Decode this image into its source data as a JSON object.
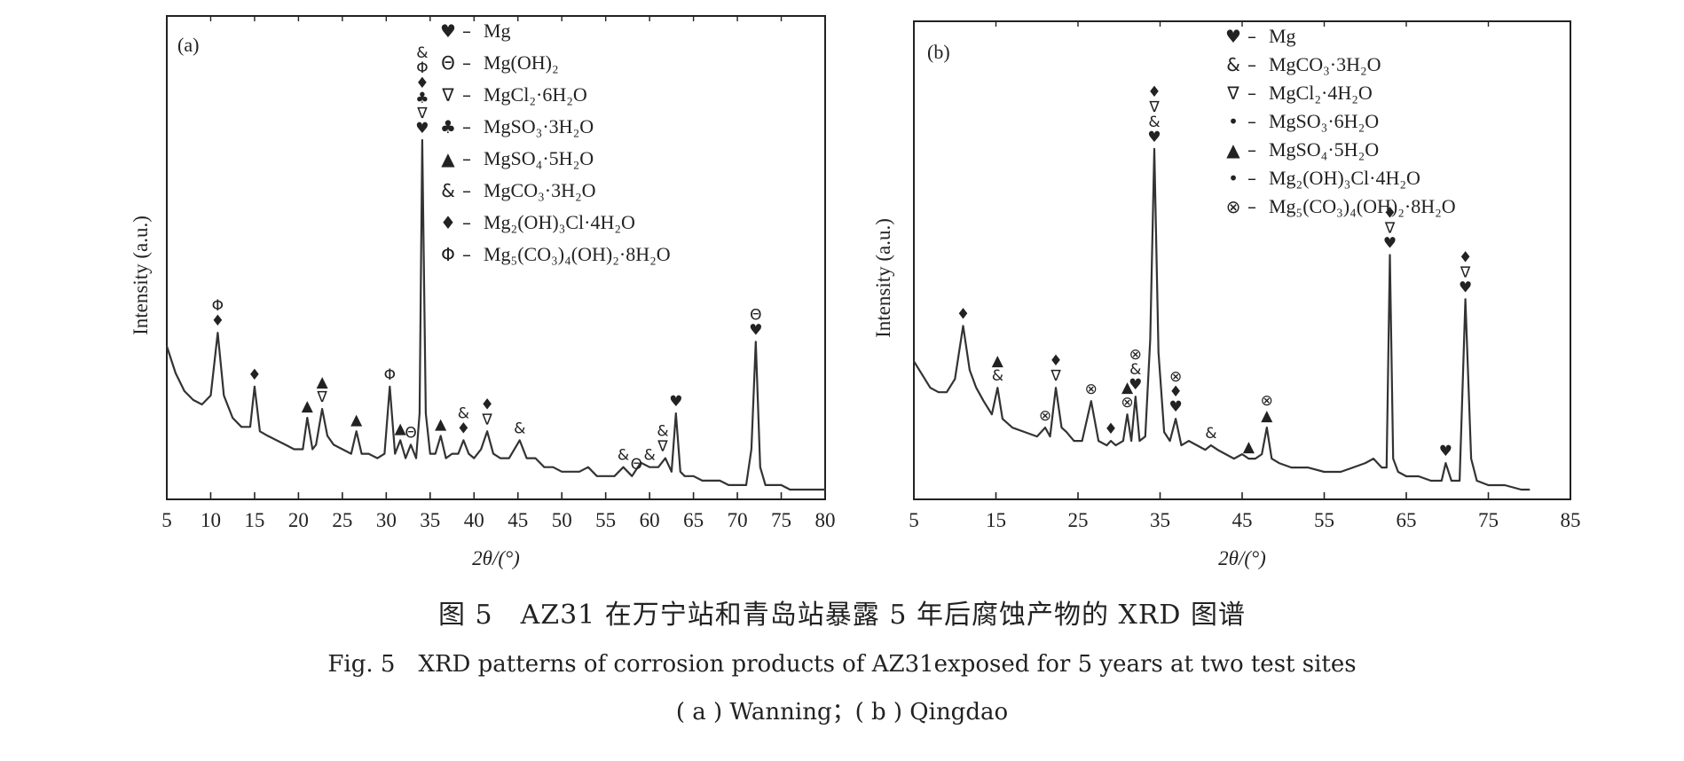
{
  "figure": {
    "caption_cn": "图 5　AZ31 在万宁站和青岛站暴露 5 年后腐蚀产物的 XRD 图谱",
    "caption_en": "Fig. 5　XRD patterns of corrosion products of AZ31exposed for 5 years at two test sites",
    "caption_sub": "( a ) Wanning；( b ) Qingdao"
  },
  "chart_data": [
    {
      "type": "line",
      "panel_label": "(a)",
      "xlabel": "2θ/(°)",
      "ylabel": "Intensity (a.u.)",
      "xlim": [
        5,
        80
      ],
      "ylim": [
        0,
        100
      ],
      "xticks": [
        5,
        10,
        15,
        20,
        25,
        30,
        35,
        40,
        45,
        50,
        55,
        60,
        65,
        70,
        75,
        80
      ],
      "x": [
        5,
        6,
        7,
        8,
        9,
        10,
        10.8,
        11.5,
        12.5,
        13.5,
        14.5,
        15,
        15.6,
        16.5,
        17.5,
        18.5,
        19.5,
        20.5,
        21,
        21.6,
        22,
        22.7,
        23.3,
        24,
        25,
        26,
        26.6,
        27.2,
        28,
        29,
        29.8,
        30.4,
        31,
        31.6,
        32.2,
        32.8,
        33.4,
        33.8,
        34.1,
        34.5,
        35,
        35.6,
        36.2,
        36.8,
        37.5,
        38.2,
        38.8,
        39.4,
        40,
        40.8,
        41.5,
        42.2,
        43,
        44,
        45.2,
        46,
        47,
        48,
        49,
        50,
        51,
        52,
        53,
        54,
        55,
        56,
        57,
        58,
        59,
        60,
        61,
        61.8,
        62.5,
        63,
        63.5,
        64,
        65,
        66,
        67,
        68,
        69,
        70,
        71,
        71.6,
        72.1,
        72.6,
        73.2,
        74,
        75,
        76,
        77,
        78,
        79,
        80
      ],
      "y": [
        33,
        27,
        23,
        21,
        20,
        22,
        36,
        22,
        17,
        15,
        15,
        24,
        14,
        13,
        12,
        11,
        10,
        10,
        17,
        10,
        11,
        19,
        13,
        11,
        10,
        9,
        14,
        9,
        9,
        8,
        9,
        24,
        9,
        12,
        8,
        11,
        8,
        18,
        79,
        18,
        9,
        9,
        13,
        8,
        9,
        9,
        12,
        9,
        8,
        10,
        14,
        9,
        8,
        8,
        12,
        8,
        8,
        6,
        6,
        5,
        5,
        5,
        6,
        4,
        4,
        4,
        6,
        4,
        7,
        6,
        6,
        8,
        5,
        18,
        5,
        4,
        4,
        3,
        3,
        3,
        2,
        2,
        2,
        10,
        34,
        6,
        2,
        2,
        2,
        1,
        1,
        1,
        1,
        1
      ],
      "legend": [
        {
          "symbol": "♥",
          "label": "Mg"
        },
        {
          "symbol": "Θ",
          "label": "Mg(OH)₂"
        },
        {
          "symbol": "∇",
          "label": "MgCl₂·6H₂O"
        },
        {
          "symbol": "♣",
          "label": "MgSO₃·3H₂O"
        },
        {
          "symbol": "▲",
          "label": "MgSO₄·5H₂O"
        },
        {
          "symbol": "&",
          "label": "MgCO₃·3H₂O"
        },
        {
          "symbol": "♦",
          "label": "Mg₂(OH)₃Cl·4H₂O"
        },
        {
          "symbol": "Φ",
          "label": "Mg₅(CO₃)₄(OH)₂·8H₂O"
        }
      ],
      "peak_markers": [
        {
          "x": 10.8,
          "symbols": [
            "♦",
            "Φ"
          ]
        },
        {
          "x": 15,
          "symbols": [
            "♦"
          ]
        },
        {
          "x": 21,
          "symbols": [
            "▲"
          ]
        },
        {
          "x": 22.7,
          "symbols": [
            "∇",
            "▲"
          ]
        },
        {
          "x": 26.6,
          "symbols": [
            "▲"
          ]
        },
        {
          "x": 30.4,
          "symbols": [
            "Φ"
          ]
        },
        {
          "x": 31.6,
          "symbols": [
            "▲"
          ]
        },
        {
          "x": 32.8,
          "symbols": [
            "Θ"
          ]
        },
        {
          "x": 34.1,
          "symbols": [
            "♥",
            "∇",
            "♣",
            "♦",
            "Φ",
            "&"
          ]
        },
        {
          "x": 36.2,
          "symbols": [
            "▲"
          ]
        },
        {
          "x": 38.8,
          "symbols": [
            "♦",
            "&"
          ]
        },
        {
          "x": 41.5,
          "symbols": [
            "∇",
            "♦"
          ]
        },
        {
          "x": 45.2,
          "symbols": [
            "&"
          ]
        },
        {
          "x": 57,
          "symbols": [
            "&"
          ]
        },
        {
          "x": 58.5,
          "symbols": [
            "Θ"
          ]
        },
        {
          "x": 60,
          "symbols": [
            "&"
          ]
        },
        {
          "x": 61.5,
          "symbols": [
            "∇",
            "&"
          ]
        },
        {
          "x": 63,
          "symbols": [
            "♥"
          ]
        },
        {
          "x": 72.1,
          "symbols": [
            "♥",
            "Θ"
          ]
        }
      ]
    },
    {
      "type": "line",
      "panel_label": "(b)",
      "xlabel": "2θ/(°)",
      "ylabel": "Intensity (a.u.)",
      "xlim": [
        5,
        85
      ],
      "ylim": [
        0,
        100
      ],
      "xticks": [
        5,
        15,
        25,
        35,
        45,
        55,
        65,
        75,
        85
      ],
      "x": [
        5,
        6,
        7,
        8,
        9,
        10,
        11,
        11.8,
        12.6,
        13.5,
        14.5,
        15.2,
        15.8,
        17,
        18.5,
        20,
        21,
        21.6,
        22.3,
        23,
        23.6,
        24.5,
        25.5,
        26.6,
        27.5,
        28.5,
        29,
        29.6,
        30.5,
        31,
        31.5,
        32,
        32.5,
        33.2,
        33.8,
        34.3,
        34.8,
        35.5,
        36.2,
        36.9,
        37.6,
        38.5,
        39.5,
        40.5,
        41.2,
        42,
        43,
        44,
        45,
        45.8,
        46.6,
        47.4,
        48,
        48.6,
        49.5,
        51,
        53,
        55,
        57,
        58.5,
        60,
        61,
        62,
        62.6,
        63,
        63.4,
        64,
        65,
        66.5,
        68,
        69.3,
        69.8,
        70.5,
        71.5,
        72.2,
        72.9,
        73.6,
        75,
        77,
        79,
        80
      ],
      "y": [
        30,
        27,
        24,
        23,
        23,
        26,
        38,
        28,
        24,
        21,
        18,
        24,
        17,
        15,
        14,
        13,
        15,
        13,
        24,
        15,
        14,
        12,
        12,
        21,
        12,
        11,
        12,
        11,
        12,
        18,
        12,
        22,
        12,
        13,
        35,
        78,
        32,
        14,
        12,
        17,
        11,
        12,
        11,
        10,
        11,
        10,
        9,
        8,
        9,
        8,
        8,
        9,
        15,
        8,
        7,
        6,
        6,
        5,
        5,
        6,
        7,
        8,
        6,
        6,
        54,
        8,
        5,
        4,
        4,
        3,
        3,
        7,
        3,
        3,
        44,
        8,
        3,
        2,
        2,
        1,
        1
      ],
      "legend": [
        {
          "symbol": "♥",
          "label": "Mg"
        },
        {
          "symbol": "&",
          "label": "MgCO₃·3H₂O"
        },
        {
          "symbol": "∇",
          "label": "MgCl₂·4H₂O"
        },
        {
          "symbol": "•",
          "label": "MgSO₃·6H₂O"
        },
        {
          "symbol": "▲",
          "label": "MgSO₄·5H₂O"
        },
        {
          "symbol": "•",
          "label": "Mg₂(OH)₃Cl·4H₂O"
        },
        {
          "symbol": "⊗",
          "label": "Mg₅(CO₃)₄(OH)₂·8H₂O"
        }
      ],
      "peak_markers": [
        {
          "x": 11,
          "symbols": [
            "♦"
          ]
        },
        {
          "x": 15.2,
          "symbols": [
            "&",
            "▲"
          ]
        },
        {
          "x": 21,
          "symbols": [
            "⊗"
          ]
        },
        {
          "x": 22.3,
          "symbols": [
            "∇",
            "♦"
          ]
        },
        {
          "x": 26.6,
          "symbols": [
            "⊗"
          ]
        },
        {
          "x": 29,
          "symbols": [
            "♦"
          ]
        },
        {
          "x": 31,
          "symbols": [
            "⊗",
            "▲"
          ]
        },
        {
          "x": 32,
          "symbols": [
            "♥",
            "&",
            "⊗"
          ]
        },
        {
          "x": 34.3,
          "symbols": [
            "♥",
            "&",
            "∇",
            "♦"
          ]
        },
        {
          "x": 36.9,
          "symbols": [
            "♥",
            "♦",
            "⊗"
          ]
        },
        {
          "x": 41.2,
          "symbols": [
            "&"
          ]
        },
        {
          "x": 45.8,
          "symbols": [
            "▲"
          ]
        },
        {
          "x": 48,
          "symbols": [
            "▲",
            "⊗"
          ]
        },
        {
          "x": 63,
          "symbols": [
            "♥",
            "∇",
            "♦"
          ]
        },
        {
          "x": 69.8,
          "symbols": [
            "♥"
          ]
        },
        {
          "x": 72.2,
          "symbols": [
            "♥",
            "∇",
            "♦"
          ]
        }
      ]
    }
  ]
}
